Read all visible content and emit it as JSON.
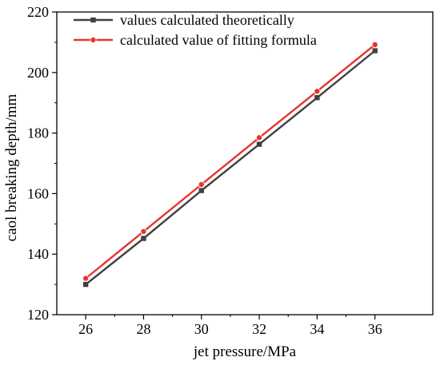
{
  "chart_data": {
    "type": "line",
    "xlabel": "jet pressure/MPa",
    "ylabel": "caol breaking depth/mm",
    "xlim": [
      25,
      38
    ],
    "ylim": [
      120,
      220
    ],
    "x_ticks": [
      26,
      28,
      30,
      32,
      34,
      36
    ],
    "y_ticks": [
      120,
      140,
      160,
      180,
      200,
      220
    ],
    "grid": false,
    "legend_position": "top-left",
    "series": [
      {
        "name": "values calculated theoretically",
        "color": "#404040",
        "marker": "square",
        "x": [
          26,
          28,
          30,
          32,
          34,
          36
        ],
        "values": [
          130,
          145.2,
          161.0,
          176.3,
          191.7,
          207.2
        ]
      },
      {
        "name": "calculated value of fitting formula",
        "color": "#e8332e",
        "marker": "circle",
        "x": [
          26,
          28,
          30,
          32,
          34,
          36
        ],
        "values": [
          132,
          147.5,
          163.0,
          178.5,
          193.8,
          209.2
        ]
      }
    ]
  }
}
